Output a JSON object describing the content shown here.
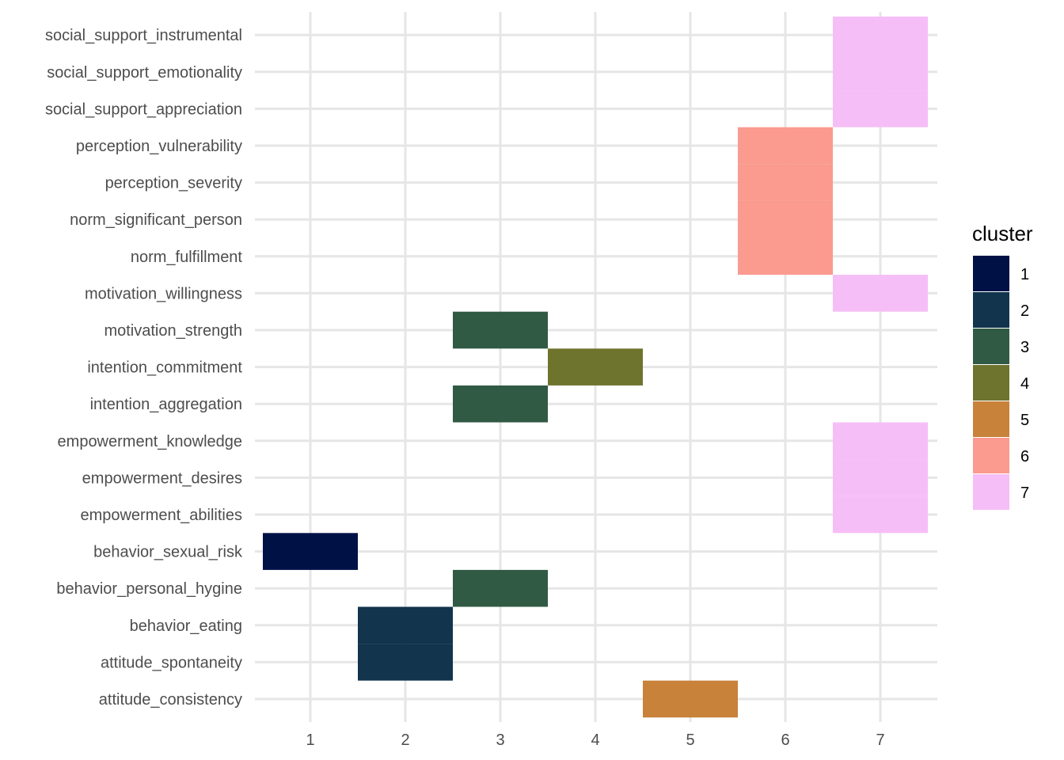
{
  "chart_data": {
    "type": "heatmap",
    "title": "",
    "xlabel": "",
    "ylabel": "",
    "x_categories": [
      "1",
      "2",
      "3",
      "4",
      "5",
      "6",
      "7"
    ],
    "y_categories": [
      "attitude_consistency",
      "attitude_spontaneity",
      "behavior_eating",
      "behavior_personal_hygine",
      "behavior_sexual_risk",
      "empowerment_abilities",
      "empowerment_desires",
      "empowerment_knowledge",
      "intention_aggregation",
      "intention_commitment",
      "motivation_strength",
      "motivation_willingness",
      "norm_fulfillment",
      "norm_significant_person",
      "perception_severity",
      "perception_vulnerability",
      "social_support_appreciation",
      "social_support_emotionality",
      "social_support_instrumental"
    ],
    "cells": [
      {
        "y": "attitude_consistency",
        "x": 5,
        "cluster": "5"
      },
      {
        "y": "attitude_spontaneity",
        "x": 2,
        "cluster": "2"
      },
      {
        "y": "behavior_eating",
        "x": 2,
        "cluster": "2"
      },
      {
        "y": "behavior_personal_hygine",
        "x": 3,
        "cluster": "3"
      },
      {
        "y": "behavior_sexual_risk",
        "x": 1,
        "cluster": "1"
      },
      {
        "y": "empowerment_abilities",
        "x": 7,
        "cluster": "7"
      },
      {
        "y": "empowerment_desires",
        "x": 7,
        "cluster": "7"
      },
      {
        "y": "empowerment_knowledge",
        "x": 7,
        "cluster": "7"
      },
      {
        "y": "intention_aggregation",
        "x": 3,
        "cluster": "3"
      },
      {
        "y": "intention_commitment",
        "x": 4,
        "cluster": "4"
      },
      {
        "y": "motivation_strength",
        "x": 3,
        "cluster": "3"
      },
      {
        "y": "motivation_willingness",
        "x": 7,
        "cluster": "7"
      },
      {
        "y": "norm_fulfillment",
        "x": 6,
        "cluster": "6"
      },
      {
        "y": "norm_significant_person",
        "x": 6,
        "cluster": "6"
      },
      {
        "y": "perception_severity",
        "x": 6,
        "cluster": "6"
      },
      {
        "y": "perception_vulnerability",
        "x": 6,
        "cluster": "6"
      },
      {
        "y": "social_support_appreciation",
        "x": 7,
        "cluster": "7"
      },
      {
        "y": "social_support_emotionality",
        "x": 7,
        "cluster": "7"
      },
      {
        "y": "social_support_instrumental",
        "x": 7,
        "cluster": "7"
      }
    ],
    "legend": {
      "title": "cluster",
      "position": "right",
      "items": [
        {
          "label": "1",
          "color": "#001146"
        },
        {
          "label": "2",
          "color": "#12344d"
        },
        {
          "label": "3",
          "color": "#305a44"
        },
        {
          "label": "4",
          "color": "#6e732d"
        },
        {
          "label": "5",
          "color": "#c8823a"
        },
        {
          "label": "6",
          "color": "#fb9a8f"
        },
        {
          "label": "7",
          "color": "#f6bef6"
        }
      ]
    },
    "grid": true
  }
}
